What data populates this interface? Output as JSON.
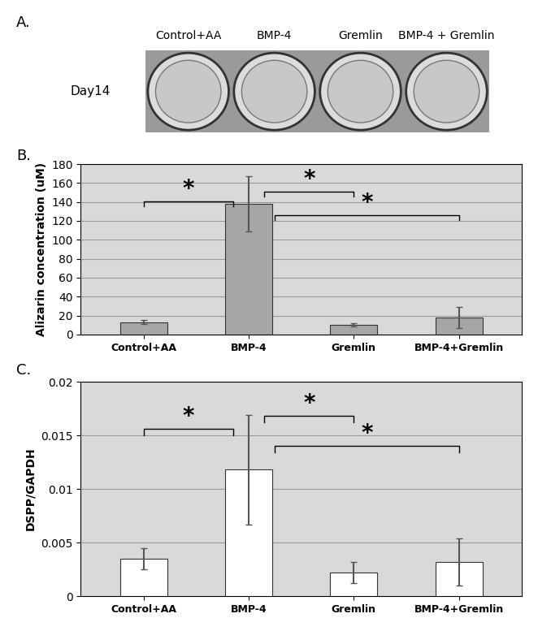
{
  "image": {
    "panel_label": "A.",
    "row_label": "Day14",
    "wells": [
      "Control+AA",
      "BMP-4",
      "Gremlin",
      "BMP-4 + Gremlin"
    ]
  },
  "chart_data": [
    {
      "type": "bar",
      "panel_label": "B.",
      "categories": [
        "Control+AA",
        "BMP-4",
        "Gremlin",
        "BMP-4+Gremlin"
      ],
      "values": [
        13,
        138,
        10,
        18
      ],
      "errors": [
        2,
        29,
        1.5,
        11
      ],
      "color": "#a6a6a6",
      "y_label": "Alizarin concentration (uM)",
      "ylim": [
        0,
        180
      ],
      "yticks": [
        0,
        20,
        40,
        60,
        80,
        100,
        120,
        140,
        160,
        180
      ],
      "grid": true,
      "annotations": [
        {
          "text": "*",
          "between": [
            "Control+AA",
            "BMP-4"
          ]
        },
        {
          "text": "*",
          "between": [
            "BMP-4",
            "Gremlin"
          ]
        },
        {
          "text": "*",
          "between": [
            "BMP-4",
            "BMP-4+Gremlin"
          ]
        }
      ]
    },
    {
      "type": "bar",
      "panel_label": "C.",
      "categories": [
        "Control+AA",
        "BMP-4",
        "Gremlin",
        "BMP-4+Gremlin"
      ],
      "values": [
        0.0035,
        0.0118,
        0.0022,
        0.0032
      ],
      "errors": [
        0.001,
        0.0051,
        0.001,
        0.0022
      ],
      "color": "#ffffff",
      "y_label": "DSPP/GAPDH",
      "ylim": [
        0,
        0.02
      ],
      "yticks": [
        0,
        0.005,
        0.01,
        0.015,
        0.02
      ],
      "grid": true,
      "annotations": [
        {
          "text": "*",
          "between": [
            "Control+AA",
            "BMP-4"
          ]
        },
        {
          "text": "*",
          "between": [
            "BMP-4",
            "Gremlin"
          ]
        },
        {
          "text": "*",
          "between": [
            "BMP-4",
            "BMP-4+Gremlin"
          ]
        }
      ]
    }
  ]
}
